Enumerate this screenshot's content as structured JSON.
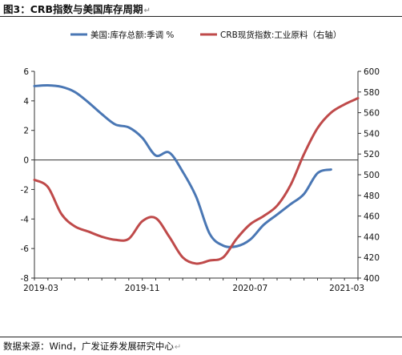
{
  "figure_title": "图3：CRB指数与美国库存周期",
  "source": "数据来源：Wind，广发证券发展研究中心",
  "colors": {
    "blue": "#4a77b4",
    "red": "#bf4a4a"
  },
  "chart_data": {
    "type": "line",
    "title": "图3：CRB指数与美国库存周期",
    "x": [
      "2019-03",
      "2019-04",
      "2019-05",
      "2019-06",
      "2019-07",
      "2019-08",
      "2019-09",
      "2019-10",
      "2019-11",
      "2019-12",
      "2020-01",
      "2020-02",
      "2020-03",
      "2020-04",
      "2020-05",
      "2020-06",
      "2020-07",
      "2020-08",
      "2020-09",
      "2020-10",
      "2020-11",
      "2020-12",
      "2021-01",
      "2021-02",
      "2021-03"
    ],
    "x_tick_labels": [
      "2019-03",
      "2019-11",
      "2020-07",
      "2021-03"
    ],
    "series": [
      {
        "name": "美国:库存总额:季调 %",
        "axis": "left",
        "color": "#4a77b4",
        "values": [
          5.0,
          5.05,
          4.95,
          4.6,
          3.9,
          3.1,
          2.4,
          2.2,
          1.5,
          0.3,
          0.5,
          -0.8,
          -2.5,
          -5.0,
          -5.8,
          -5.85,
          -5.4,
          -4.4,
          -3.7,
          -3.0,
          -2.3,
          -0.9,
          -0.65,
          null,
          null
        ]
      },
      {
        "name": "CRB现货指数:工业原料（右轴）",
        "axis": "right",
        "color": "#bf4a4a",
        "values": [
          495,
          488,
          462,
          450,
          445,
          440,
          437,
          438,
          455,
          458,
          440,
          420,
          414,
          417,
          420,
          438,
          452,
          460,
          470,
          490,
          520,
          545,
          560,
          568,
          574
        ]
      }
    ],
    "y_left": {
      "ylim": [
        -8,
        6
      ],
      "ticks": [
        -8,
        -6,
        -4,
        -2,
        0,
        2,
        4,
        6
      ]
    },
    "y_right": {
      "ylim": [
        400,
        600
      ],
      "ticks": [
        400,
        420,
        440,
        460,
        480,
        500,
        520,
        540,
        560,
        580,
        600
      ]
    },
    "grid": false,
    "legend_position": "top"
  }
}
